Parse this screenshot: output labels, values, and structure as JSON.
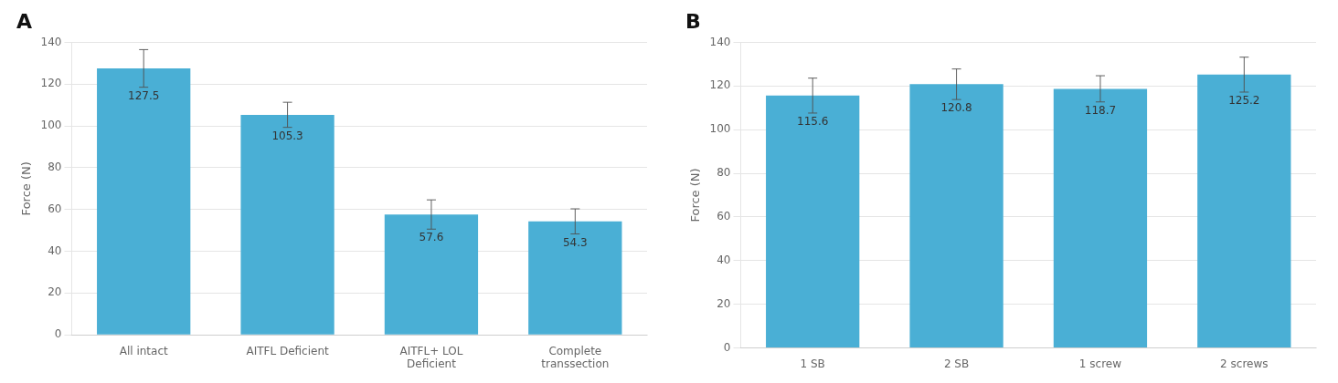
{
  "chart_data": [
    {
      "type": "bar",
      "title": "A",
      "categories": [
        "All intact",
        "AITFL Deficient",
        "AITFL+ LOL\nDeficient",
        "Complete\ntranssection"
      ],
      "values": [
        127.5,
        105.3,
        57.6,
        54.3
      ],
      "errors": [
        9,
        6,
        7,
        6
      ],
      "color": "#4AAFD5",
      "ylabel": "Force (N)",
      "ylim": [
        0,
        140
      ],
      "yticks": [
        0,
        20,
        40,
        60,
        80,
        100,
        120,
        140
      ],
      "grid": true,
      "data_labels": true
    },
    {
      "type": "bar",
      "title": "B",
      "categories": [
        "1 SB",
        "2 SB",
        "1 screw",
        "2 screws"
      ],
      "values": [
        115.6,
        120.8,
        118.7,
        125.2
      ],
      "errors": [
        8,
        7,
        6,
        8
      ],
      "color": "#4AAFD5",
      "ylabel": "Force (N)",
      "ylim": [
        0,
        140
      ],
      "yticks": [
        0,
        20,
        40,
        60,
        80,
        100,
        120,
        140
      ],
      "grid": true,
      "data_labels": true
    }
  ]
}
